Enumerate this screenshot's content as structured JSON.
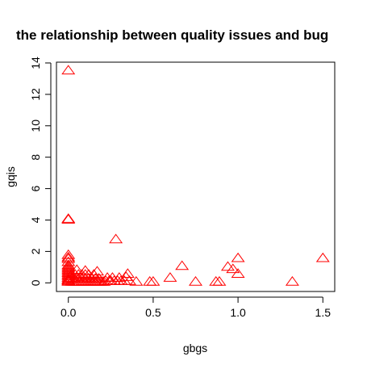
{
  "chart_data": {
    "type": "scatter",
    "title": "the relationship between quality issues and bug",
    "xlabel": "gbgs",
    "ylabel": "gqis",
    "xlim": [
      -0.07,
      1.57
    ],
    "ylim": [
      -0.55,
      14.05
    ],
    "x_ticks": [
      "0.0",
      "0.5",
      "1.0",
      "1.5"
    ],
    "x_tick_values": [
      0,
      0.5,
      1.0,
      1.5
    ],
    "y_ticks": [
      "0",
      "2",
      "4",
      "6",
      "8",
      "10",
      "12",
      "14"
    ],
    "y_tick_values": [
      0,
      2,
      4,
      6,
      8,
      10,
      12,
      14
    ],
    "marker": "open-triangle",
    "marker_color": "#ff0000",
    "grid": false,
    "legend": "none",
    "series": [
      {
        "x": [
          0,
          0,
          0,
          0,
          0,
          0,
          0,
          0,
          0,
          0,
          0,
          0,
          0,
          0,
          0,
          0,
          0,
          0,
          0,
          0,
          0.02,
          0.03,
          0.04,
          0.05,
          0.06,
          0.07,
          0.08,
          0.09,
          0.1,
          0.11,
          0.12,
          0.13,
          0.14,
          0.15,
          0.16,
          0.17,
          0.18,
          0.19,
          0.2,
          0.21,
          0.02,
          0.03,
          0.05,
          0.06,
          0.08,
          0.1,
          0.12,
          0.14,
          0.16,
          0.18,
          0.02,
          0.04,
          0.06,
          0.08,
          0.1,
          0.12,
          0.15,
          0.05,
          0.1,
          0.17,
          0.22,
          0.24,
          0.25,
          0.27,
          0.29,
          0.31,
          0.33,
          0.36,
          0.23,
          0.26,
          0.3,
          0.34,
          0.28,
          0.35,
          0.4,
          0.48,
          0.5,
          0.6,
          0.67,
          0.75,
          0.87,
          0.89,
          0.94,
          0.97,
          1.0,
          1.0,
          1.32,
          1.5
        ],
        "y": [
          13.5,
          4.05,
          4.0,
          1.75,
          1.6,
          1.5,
          1.3,
          1.1,
          1.0,
          0.9,
          0.8,
          0.7,
          0.6,
          0.5,
          0.4,
          0.3,
          0.2,
          0.15,
          0.1,
          0.05,
          0.05,
          0.05,
          0.05,
          0.05,
          0.05,
          0.05,
          0.05,
          0.05,
          0.05,
          0.05,
          0.05,
          0.05,
          0.05,
          0.05,
          0.05,
          0.05,
          0.05,
          0.05,
          0.05,
          0.05,
          0.25,
          0.25,
          0.25,
          0.25,
          0.25,
          0.25,
          0.25,
          0.25,
          0.25,
          0.25,
          0.5,
          0.5,
          0.5,
          0.5,
          0.5,
          0.5,
          0.5,
          0.8,
          0.75,
          0.7,
          0.1,
          0.1,
          0.1,
          0.1,
          0.1,
          0.1,
          0.1,
          0.1,
          0.3,
          0.3,
          0.3,
          0.35,
          2.75,
          0.55,
          0.05,
          0.05,
          0.05,
          0.3,
          1.05,
          0.05,
          0.05,
          0.05,
          1.0,
          0.85,
          1.55,
          0.55,
          0.05,
          1.55
        ]
      }
    ]
  }
}
